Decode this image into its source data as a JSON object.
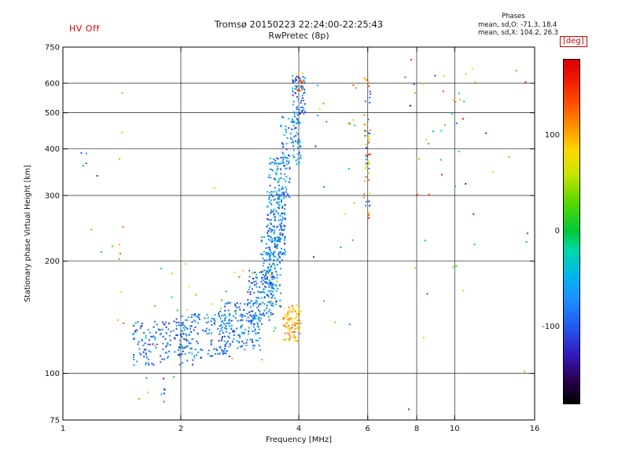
{
  "header": {
    "hv_status": "HV Off",
    "title_line1": "Tromsø 20150223 22:24:00-22:25:43",
    "title_line2": "RwPretec (8p)",
    "phases_title": "Phases",
    "phases_line1": "mean, sd,O: -71.3, 18.4",
    "phases_line2": "mean, sd,X: 104.2, 26.3"
  },
  "colorbar": {
    "unit_label": "[deg]",
    "min": -180,
    "max": 180,
    "ticks": [
      {
        "value": 100,
        "label": "100"
      },
      {
        "value": 0,
        "label": "0"
      },
      {
        "value": -100,
        "label": "-100"
      }
    ]
  },
  "chart_data": {
    "type": "scatter",
    "title": "Tromsø 20150223 22:24:00-22:25:43",
    "subtitle": "RwPretec (8p)",
    "xlabel": "Frequency [MHz]",
    "ylabel": "Stationary phase Virtual Height [km]",
    "x_scale": "log",
    "y_scale": "log",
    "x_range": [
      1,
      16
    ],
    "y_range": [
      75,
      750
    ],
    "x_ticks": [
      {
        "v": 1,
        "label": "1",
        "grid": false
      },
      {
        "v": 2,
        "label": "2",
        "grid": true
      },
      {
        "v": 4,
        "label": "4",
        "grid": true
      },
      {
        "v": 6,
        "label": "6",
        "grid": true
      },
      {
        "v": 8,
        "label": "8",
        "grid": true
      },
      {
        "v": 10,
        "label": "10",
        "grid": true
      },
      {
        "v": 16,
        "label": "16",
        "grid": false
      }
    ],
    "y_ticks": [
      {
        "v": 750,
        "label": "750",
        "grid": false
      },
      {
        "v": 600,
        "label": "600",
        "grid": true
      },
      {
        "v": 500,
        "label": "500",
        "grid": true
      },
      {
        "v": 400,
        "label": "400",
        "grid": true
      },
      {
        "v": 300,
        "label": "300",
        "grid": true
      },
      {
        "v": 200,
        "label": "200",
        "grid": true
      },
      {
        "v": 100,
        "label": "100",
        "grid": true
      },
      {
        "v": 75,
        "label": "75",
        "grid": false
      }
    ],
    "color_label": "[deg]",
    "color_range": [
      -180,
      180
    ],
    "colormap": [
      [
        -180,
        "#000000"
      ],
      [
        -155,
        "#2a0050"
      ],
      [
        -130,
        "#3318bb"
      ],
      [
        -100,
        "#2257f0"
      ],
      [
        -70,
        "#1e90ff"
      ],
      [
        -45,
        "#00b8e8"
      ],
      [
        -20,
        "#00d8a8"
      ],
      [
        0,
        "#00c83c"
      ],
      [
        30,
        "#55d800"
      ],
      [
        60,
        "#c8e400"
      ],
      [
        85,
        "#ffd800"
      ],
      [
        105,
        "#ffa000"
      ],
      [
        130,
        "#ff5a00"
      ],
      [
        160,
        "#f01800"
      ],
      [
        180,
        "#d80008"
      ]
    ],
    "seed": 20150223,
    "point_size": 2,
    "clusters": [
      {
        "f": [
          1.5,
          2.15
        ],
        "h": [
          105,
          138
        ],
        "n": 150,
        "phase": [
          -125,
          -55
        ]
      },
      {
        "f": [
          1.95,
          2.7
        ],
        "h": [
          110,
          145
        ],
        "n": 150,
        "phase": [
          -115,
          -45
        ]
      },
      {
        "f": [
          2.5,
          3.2
        ],
        "h": [
          115,
          155
        ],
        "n": 150,
        "phase": [
          -120,
          -45
        ]
      },
      {
        "f": [
          2.95,
          3.45
        ],
        "h": [
          135,
          190
        ],
        "n": 120,
        "phase": [
          -120,
          -50
        ]
      },
      {
        "f": [
          3.2,
          3.6
        ],
        "h": [
          150,
          235
        ],
        "n": 130,
        "phase": [
          -115,
          -35
        ]
      },
      {
        "f": [
          3.3,
          3.7
        ],
        "h": [
          200,
          310
        ],
        "n": 170,
        "phase": [
          -120,
          -40
        ]
      },
      {
        "f": [
          3.35,
          3.8
        ],
        "h": [
          290,
          380
        ],
        "n": 90,
        "phase": [
          -115,
          -30
        ]
      },
      {
        "f": [
          3.6,
          4.05
        ],
        "h": [
          360,
          490
        ],
        "n": 80,
        "phase": [
          -125,
          -25
        ]
      },
      {
        "f": [
          3.85,
          4.15
        ],
        "h": [
          470,
          630
        ],
        "n": 70,
        "phase": [
          -130,
          -40
        ]
      },
      {
        "f": [
          3.95,
          4.12
        ],
        "h": [
          570,
          640
        ],
        "n": 14,
        "phase": [
          80,
          170
        ]
      },
      {
        "f": [
          3.65,
          4.05
        ],
        "h": [
          122,
          152
        ],
        "n": 95,
        "phase": [
          60,
          135
        ]
      },
      {
        "f": [
          1.7,
          3.6
        ],
        "h": [
          108,
          200
        ],
        "n": 40,
        "phase": [
          -25,
          115
        ]
      },
      {
        "f": [
          5.85,
          6.1
        ],
        "h": [
          260,
          630
        ],
        "n": 40,
        "phase": [
          45,
          165
        ]
      },
      {
        "f": [
          5.9,
          6.1
        ],
        "h": [
          280,
          570
        ],
        "n": 18,
        "phase": [
          -120,
          -55
        ]
      },
      {
        "f": [
          7.6,
          11.0
        ],
        "h": [
          95,
          640
        ],
        "n": 34,
        "phase": [
          -165,
          165
        ]
      },
      {
        "f": [
          1.37,
          1.43
        ],
        "h": [
          100,
          570
        ],
        "n": 10,
        "phase": [
          40,
          140
        ]
      },
      {
        "f": [
          4.2,
          5.6
        ],
        "h": [
          120,
          620
        ],
        "n": 22,
        "phase": [
          -140,
          140
        ]
      },
      {
        "f": [
          1.1,
          1.35
        ],
        "h": [
          150,
          420
        ],
        "n": 8,
        "phase": [
          -120,
          60
        ]
      },
      {
        "f": [
          1.55,
          2.1
        ],
        "h": [
          84,
          100
        ],
        "n": 10,
        "phase": [
          -140,
          140
        ]
      },
      {
        "f": [
          1.05,
          15.5
        ],
        "h": [
          80,
          700
        ],
        "n": 18,
        "phase": [
          -180,
          180
        ]
      }
    ]
  }
}
